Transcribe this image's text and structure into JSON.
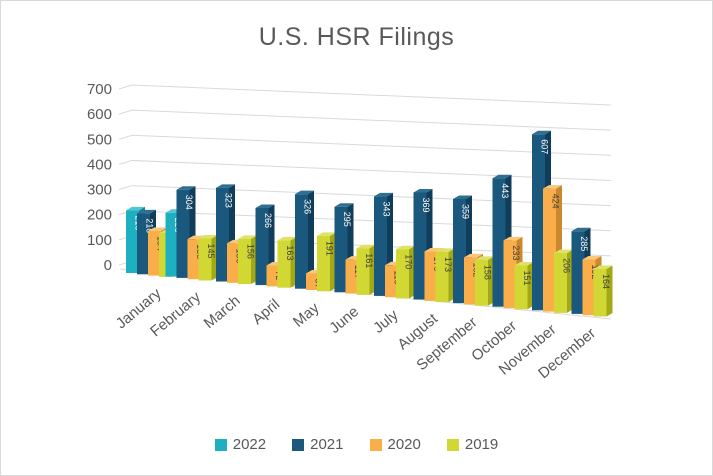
{
  "chart_data": {
    "type": "bar",
    "style": "3d-clustered-column",
    "title": "U.S. HSR Filings",
    "categories": [
      "January",
      "February",
      "March",
      "April",
      "May",
      "June",
      "July",
      "August",
      "September",
      "October",
      "November",
      "December"
    ],
    "series": [
      {
        "name": "2022",
        "color": "#1CB0C1",
        "side_color": "#0F8694",
        "top_color": "#50C6D2",
        "label_color": "#FFFFFF",
        "values": [
          216,
          220,
          null,
          null,
          null,
          null,
          null,
          null,
          null,
          null,
          null,
          null
        ]
      },
      {
        "name": "2021",
        "color": "#1A587E",
        "side_color": "#103D59",
        "top_color": "#2E7094",
        "label_color": "#FFFFFF",
        "values": [
          210,
          304,
          323,
          266,
          326,
          295,
          343,
          369,
          359,
          443,
          607,
          285
        ]
      },
      {
        "name": "2020",
        "color": "#FAAE4A",
        "side_color": "#CB882C",
        "top_color": "#FBC678",
        "label_color": "#3F3F3F",
        "values": [
          154,
          138,
          136,
          72,
          57,
          117,
          110,
          170,
          162,
          233,
          424,
          192
        ]
      },
      {
        "name": "2019",
        "color": "#D1D733",
        "side_color": "#A3A915",
        "top_color": "#DEE266",
        "label_color": "#3F3F3F",
        "values": [
          150,
          145,
          156,
          163,
          191,
          161,
          170,
          173,
          158,
          151,
          206,
          164
        ]
      }
    ],
    "ylim": [
      0,
      700
    ],
    "yticks": [
      0,
      100,
      200,
      300,
      400,
      500,
      600,
      700
    ],
    "grid": true,
    "legend_position": "bottom",
    "axis_text_color": "#595959",
    "grid_color": "#D9D9D9"
  }
}
